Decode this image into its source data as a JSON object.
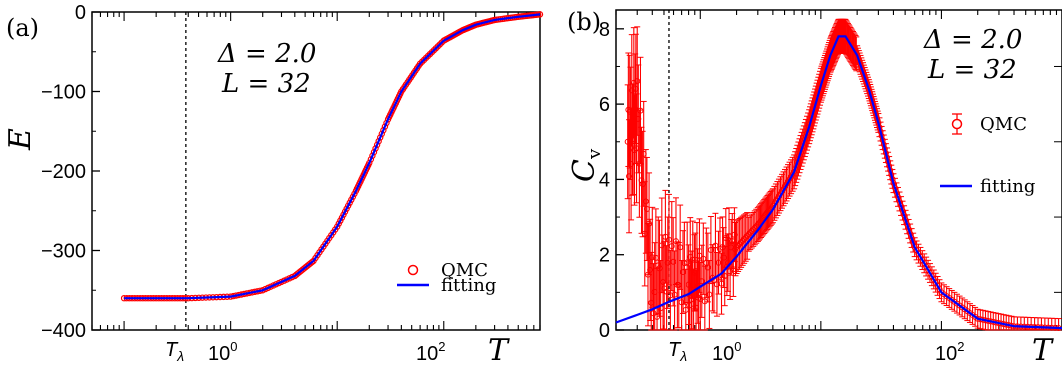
{
  "chart_data": [
    {
      "type": "line",
      "panel_label": "(a)",
      "ylabel": "E",
      "xlabel": "T",
      "x_scale": "log",
      "xlim": [
        0.05,
        800
      ],
      "ylim": [
        -400,
        0
      ],
      "x_tick_labels": [
        "10^0",
        "10^2"
      ],
      "y_ticks": [
        0,
        -100,
        -200,
        -300,
        -400
      ],
      "y_tick_labels": [
        "0",
        "−100",
        "−200",
        "−300",
        "−400"
      ],
      "t_lambda_label": "Tλ",
      "t_lambda": 0.38,
      "annotations": {
        "line1": "Δ = 2.0",
        "line2": "L = 32"
      },
      "legend": {
        "qmc": "QMC",
        "fitting": "fitting",
        "position": "right"
      },
      "colors": {
        "qmc": "#ff0000",
        "fitting": "#0000ff"
      },
      "series": [
        {
          "name": "QMC",
          "x": [
            0.1,
            0.2,
            0.4,
            1,
            2,
            4,
            6,
            10,
            15,
            20,
            30,
            40,
            60,
            100,
            150,
            200,
            300,
            500,
            800
          ],
          "y": [
            -360,
            -360,
            -360,
            -358,
            -350,
            -332,
            -313,
            -270,
            -225,
            -190,
            -135,
            -100,
            -65,
            -36,
            -23,
            -16,
            -10,
            -6,
            -3
          ]
        },
        {
          "name": "fitting",
          "x": [
            0.1,
            0.2,
            0.4,
            1,
            2,
            4,
            6,
            10,
            15,
            20,
            30,
            40,
            60,
            100,
            150,
            200,
            300,
            500,
            800
          ],
          "y": [
            -360,
            -360,
            -360,
            -358,
            -350,
            -332,
            -313,
            -270,
            -225,
            -190,
            -135,
            -100,
            -65,
            -36,
            -23,
            -16,
            -10,
            -6,
            -3
          ]
        }
      ]
    },
    {
      "type": "line",
      "panel_label": "(b)",
      "ylabel": "C",
      "ylabel_sub": "v",
      "xlabel": "T",
      "x_scale": "log",
      "xlim": [
        0.2,
        1000
      ],
      "ylim": [
        0,
        8.5
      ],
      "x_tick_labels": [
        "10^0",
        "10^2"
      ],
      "y_ticks": [
        0,
        2,
        4,
        6,
        8
      ],
      "y_tick_labels": [
        "0",
        "2",
        "4",
        "6",
        "8"
      ],
      "t_lambda_label": "Tλ",
      "t_lambda": 0.55,
      "annotations": {
        "line1": "Δ = 2.0",
        "line2": "L = 32"
      },
      "legend": {
        "qmc": "QMC",
        "fitting": "fitting",
        "position": "right"
      },
      "colors": {
        "qmc": "#ff0000",
        "fitting": "#0000ff"
      },
      "series": [
        {
          "name": "QMC",
          "x": [
            0.25,
            0.3,
            0.4,
            0.55,
            0.8,
            1,
            1.5,
            2,
            3,
            4,
            6,
            8,
            10,
            12,
            14,
            16,
            20,
            25,
            30,
            40,
            60,
            100,
            200,
            400,
            1000
          ],
          "y": [
            5.0,
            5.9,
            1.0,
            1.8,
            1.2,
            1.3,
            1.8,
            2.2,
            2.8,
            3.3,
            4.2,
            5.4,
            6.5,
            7.3,
            7.8,
            7.8,
            7.3,
            6.4,
            5.5,
            3.9,
            2.2,
            1.0,
            0.3,
            0.1,
            0.05
          ]
        },
        {
          "name": "fitting",
          "x": [
            0.2,
            0.3,
            0.4,
            0.55,
            0.8,
            1,
            1.5,
            2,
            3,
            4,
            6,
            8,
            10,
            12,
            14,
            16,
            20,
            25,
            30,
            40,
            60,
            100,
            200,
            400,
            1000
          ],
          "y": [
            0.2,
            0.4,
            0.55,
            0.75,
            0.95,
            1.15,
            1.5,
            1.95,
            2.65,
            3.2,
            4.2,
            5.4,
            6.5,
            7.3,
            7.8,
            7.8,
            7.3,
            6.4,
            5.5,
            3.9,
            2.2,
            1.0,
            0.3,
            0.1,
            0.05
          ]
        }
      ]
    }
  ]
}
